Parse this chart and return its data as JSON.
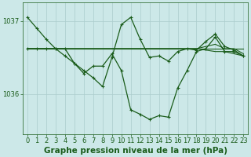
{
  "title": "Graphe pression niveau de la mer (hPa)",
  "background_color": "#cce8e8",
  "plot_bg_color": "#cce8e8",
  "grid_color": "#aacccc",
  "line_color": "#1a5c1a",
  "text_color": "#1a5c1a",
  "xlim": [
    -0.5,
    23.5
  ],
  "ylim": [
    1035.45,
    1037.25
  ],
  "yticks": [
    1036,
    1037
  ],
  "xticks": [
    0,
    1,
    2,
    3,
    4,
    5,
    6,
    7,
    8,
    9,
    10,
    11,
    12,
    13,
    14,
    15,
    16,
    17,
    18,
    19,
    20,
    21,
    22,
    23
  ],
  "series": [
    {
      "y": [
        1037.05,
        1036.9,
        1036.75,
        1036.62,
        1036.52,
        1036.42,
        1036.32,
        1036.22,
        1036.1,
        1036.5,
        1036.95,
        1037.05,
        1036.75,
        1036.5,
        1036.52,
        1036.45,
        1036.58,
        1036.62,
        1036.6,
        1036.72,
        1036.82,
        1036.65,
        1036.6,
        1036.52
      ],
      "marker": true,
      "lw": 0.9
    },
    {
      "y": [
        1036.62,
        1036.62,
        1036.62,
        1036.62,
        1036.62,
        1036.42,
        1036.28,
        1036.38,
        1036.38,
        1036.55,
        1036.32,
        1035.78,
        1035.72,
        1035.65,
        1035.7,
        1035.68,
        1036.08,
        1036.32,
        1036.58,
        1036.62,
        1036.78,
        1036.58,
        1036.58,
        1036.52
      ],
      "marker": true,
      "lw": 0.9
    },
    {
      "y": [
        1036.62,
        1036.62,
        1036.62,
        1036.62,
        1036.62,
        1036.62,
        1036.62,
        1036.62,
        1036.62,
        1036.62,
        1036.62,
        1036.62,
        1036.62,
        1036.62,
        1036.62,
        1036.62,
        1036.62,
        1036.62,
        1036.62,
        1036.62,
        1036.62,
        1036.62,
        1036.62,
        1036.62
      ],
      "marker": false,
      "lw": 0.8
    },
    {
      "y": [
        1036.62,
        1036.62,
        1036.62,
        1036.62,
        1036.62,
        1036.62,
        1036.62,
        1036.62,
        1036.62,
        1036.62,
        1036.62,
        1036.62,
        1036.62,
        1036.62,
        1036.62,
        1036.62,
        1036.62,
        1036.62,
        1036.62,
        1036.6,
        1036.58,
        1036.58,
        1036.55,
        1036.52
      ],
      "marker": false,
      "lw": 0.8
    },
    {
      "y": [
        1036.62,
        1036.62,
        1036.62,
        1036.62,
        1036.62,
        1036.62,
        1036.62,
        1036.62,
        1036.62,
        1036.62,
        1036.62,
        1036.62,
        1036.62,
        1036.62,
        1036.62,
        1036.62,
        1036.62,
        1036.62,
        1036.62,
        1036.65,
        1036.68,
        1036.62,
        1036.62,
        1036.55
      ],
      "marker": false,
      "lw": 0.8
    }
  ],
  "title_fontsize": 7.5,
  "tick_fontsize": 6.0,
  "figsize": [
    3.2,
    2.0
  ],
  "dpi": 100
}
